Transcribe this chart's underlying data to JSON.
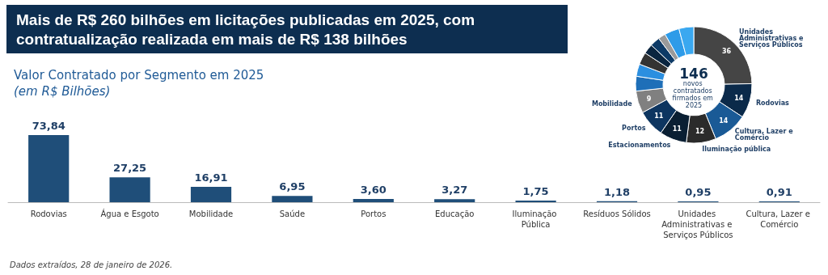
{
  "chart_data": [
    {
      "type": "bar",
      "title": "Mais de R$ 260 bilhões em licitações publicadas em 2025, com contratualização realizada em mais de R$ 138 bilhões",
      "subtitle": "Valor Contratado por Segmento em 2025",
      "ylabel": "(em R$ Bilhões)",
      "categories": [
        "Rodovias",
        "Água e Esgoto",
        "Mobilidade",
        "Saúde",
        "Portos",
        "Educação",
        "Iluminação Pública",
        "Resíduos Sólidos",
        "Unidades Administrativas e Serviços Públicos",
        "Cultura, Lazer e Comércio"
      ],
      "values": [
        73.84,
        27.25,
        16.91,
        6.95,
        3.6,
        3.27,
        1.75,
        1.18,
        0.95,
        0.91
      ],
      "value_labels": [
        "73,84",
        "27,25",
        "16,91",
        "6,95",
        "3,60",
        "3,27",
        "1,75",
        "1,18",
        "0,95",
        "0,91"
      ],
      "color": "#1f4e79",
      "tick_labels": "x",
      "legend": false,
      "annotations": [
        "Dados extraídos, 28 de janeiro de 2026."
      ]
    },
    {
      "type": "donut",
      "annotations": [
        "146",
        "novos contratados firmados em 2025"
      ],
      "categories": [
        "Unidades Administrativas e Serviços Públicos",
        "Rodovias",
        "Cultura, Lazer e Comércio",
        "Iluminação pública",
        "Estacionamentos",
        "Portos",
        "Mobilidade",
        null,
        null,
        null,
        null,
        null,
        null,
        null,
        null
      ],
      "values": [
        36,
        14,
        14,
        12,
        11,
        11,
        9,
        6,
        5,
        5,
        4,
        4,
        3,
        6,
        6
      ],
      "value_labels": [
        "36",
        "14",
        "14",
        "12",
        "11",
        "11",
        "9",
        null,
        null,
        null,
        null,
        null,
        null,
        null,
        null
      ],
      "colors": [
        "#454545",
        "#0b2a4a",
        "#1a5a96",
        "#2b2b2b",
        "#0a1f33",
        "#0d3560",
        "#808080",
        "#1e6fb8",
        "#2b8fe0",
        "#333333",
        "#0a2540",
        "#0d3a66",
        "#9a9a9a",
        "#2e9be8",
        "#3aa8f0"
      ],
      "legend": false
    }
  ]
}
